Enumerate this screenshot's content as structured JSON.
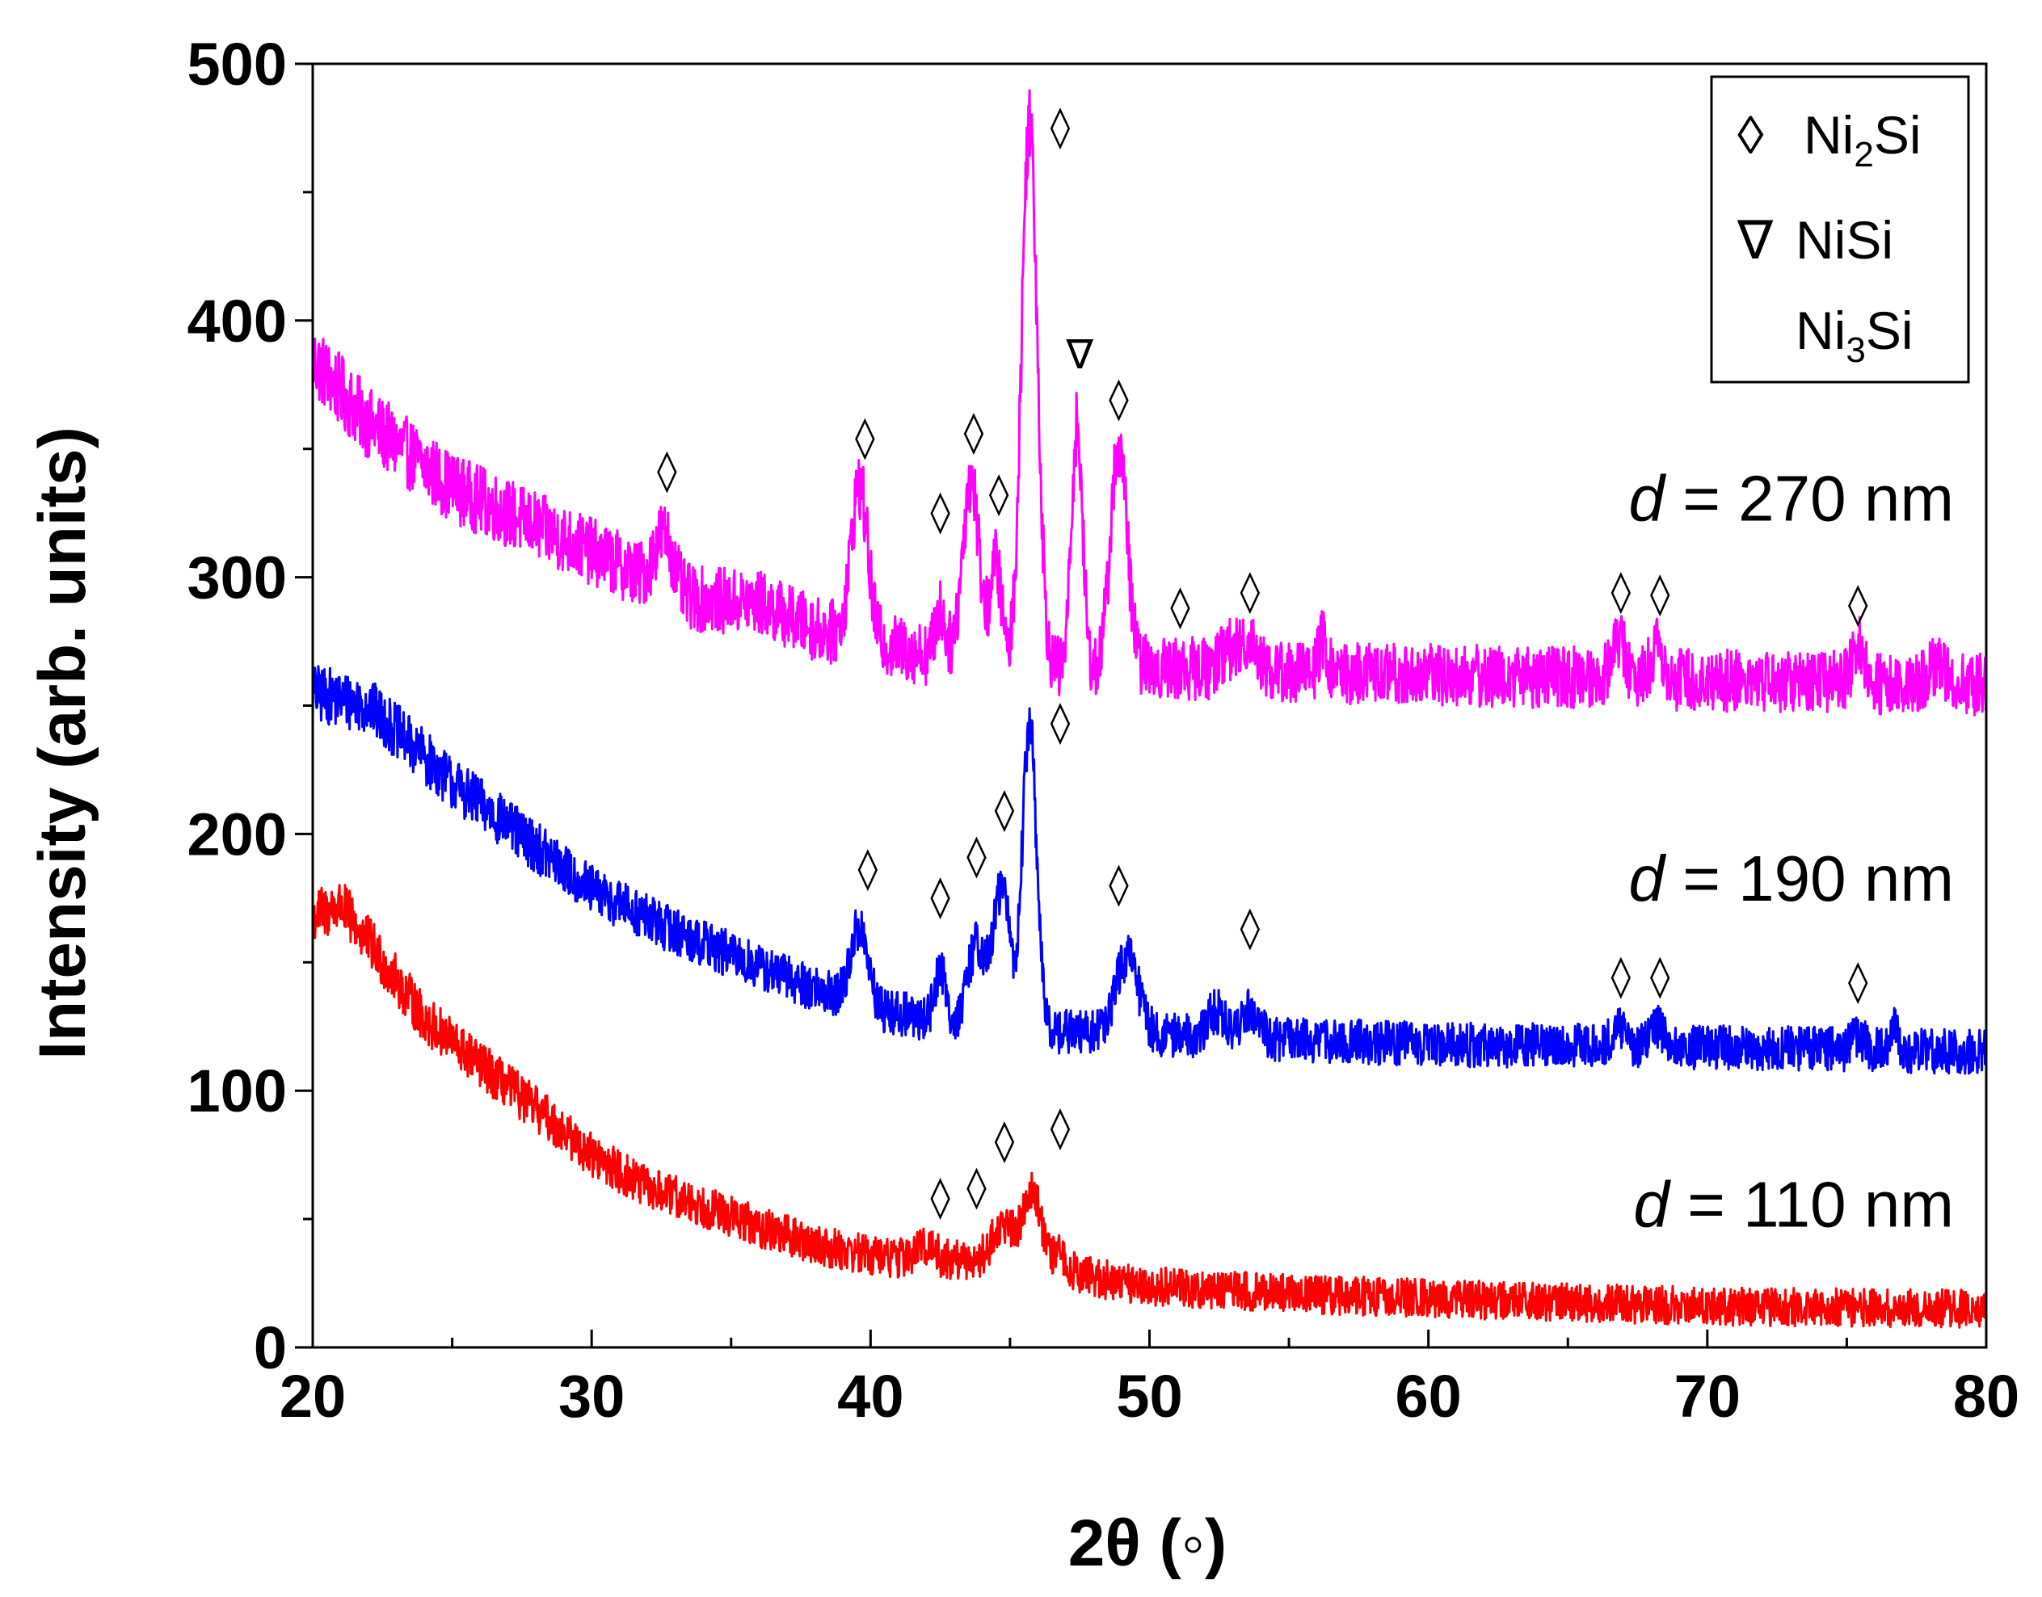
{
  "chart_data": {
    "type": "line",
    "xlabel": "2θ (◦)",
    "ylabel": "Intensity (arb. units)",
    "xlim": [
      20,
      80
    ],
    "ylim": [
      0,
      500
    ],
    "xticks": [
      20,
      30,
      40,
      50,
      60,
      70,
      80
    ],
    "yticks": [
      0,
      100,
      200,
      300,
      400,
      500
    ],
    "legend": {
      "placement": "top-right",
      "entries": [
        {
          "symbol": "◊",
          "label": "Ni",
          "sub": "2",
          "suffix": "Si"
        },
        {
          "symbol": "∇",
          "label": "Ni",
          "sub": "",
          "suffix": "Si"
        },
        {
          "symbol": "",
          "label": "Ni",
          "sub": "3",
          "suffix": "Si"
        }
      ]
    },
    "series": [
      {
        "name": "d = 270 nm",
        "label_italic": "d",
        "label_rest": " = 270 nm",
        "color": "#ff00ff",
        "label_y": 322,
        "baseline": {
          "x": [
            20,
            22,
            25,
            28,
            31,
            33,
            36,
            38,
            40,
            42,
            44,
            45,
            47,
            49,
            50,
            55,
            60,
            70,
            80
          ],
          "y": [
            385,
            360,
            335,
            320,
            305,
            292,
            290,
            280,
            275,
            270,
            266,
            265,
            264,
            263,
            265,
            263,
            262,
            260,
            258
          ]
        },
        "noise": 13,
        "peaks": [
          [
            32.6,
            22,
            0.35
          ],
          [
            39.6,
            60,
            0.3
          ],
          [
            42.5,
            18,
            0.18
          ],
          [
            43.6,
            72,
            0.3
          ],
          [
            44.5,
            40,
            0.2
          ],
          [
            45.7,
            215,
            0.28
          ],
          [
            47.4,
            95,
            0.2
          ],
          [
            48.9,
            88,
            0.3
          ],
          [
            52.8,
            8,
            0.3
          ],
          [
            53.6,
            12,
            0.3
          ],
          [
            56.2,
            12,
            0.15
          ],
          [
            66.8,
            15,
            0.25
          ],
          [
            68.2,
            15,
            0.2
          ],
          [
            75.4,
            14,
            0.2
          ],
          [
            78.2,
            8,
            0.3
          ]
        ]
      },
      {
        "name": "d = 190 nm",
        "label_italic": "d",
        "label_rest": " = 190 nm",
        "color": "#0000ff",
        "label_y": 174,
        "baseline": {
          "x": [
            20,
            22,
            25,
            28,
            30,
            33,
            36,
            38,
            40,
            42,
            44,
            45,
            47,
            49,
            50,
            55,
            60,
            70,
            80
          ],
          "y": [
            255,
            250,
            220,
            195,
            178,
            162,
            148,
            140,
            132,
            128,
            125,
            124,
            123,
            122,
            122,
            120,
            118,
            117,
            115
          ]
        },
        "noise": 12,
        "peaks": [
          [
            39.6,
            30,
            0.3
          ],
          [
            42.5,
            20,
            0.2
          ],
          [
            43.8,
            32,
            0.3
          ],
          [
            44.7,
            55,
            0.3
          ],
          [
            45.7,
            120,
            0.25
          ],
          [
            49.2,
            30,
            0.4
          ],
          [
            52.4,
            10,
            0.3
          ],
          [
            53.6,
            12,
            0.3
          ],
          [
            66.8,
            6,
            0.3
          ],
          [
            68.2,
            8,
            0.25
          ],
          [
            75.4,
            6,
            0.2
          ],
          [
            76.7,
            8,
            0.15
          ]
        ]
      },
      {
        "name": "d = 110 nm",
        "label_italic": "d",
        "label_rest": " = 110 nm",
        "color": "#ff0000",
        "label_y": 47,
        "baseline": {
          "x": [
            20,
            21,
            22,
            24,
            26,
            28,
            30,
            32,
            34,
            36,
            38,
            40,
            42,
            44,
            46,
            48,
            50,
            55,
            60,
            70,
            80
          ],
          "y": [
            168,
            172,
            158,
            128,
            110,
            93,
            75,
            62,
            55,
            47,
            40,
            36,
            34,
            34,
            34,
            27,
            24,
            21,
            19,
            16,
            15
          ]
        },
        "noise": 13,
        "peaks": [
          [
            42.0,
            6,
            0.3
          ],
          [
            44.8,
            14,
            0.4
          ],
          [
            45.8,
            28,
            0.3
          ],
          [
            46.8,
            5,
            0.2
          ]
        ]
      }
    ],
    "annotations": [
      {
        "symbol": "◊",
        "x": 32.7,
        "y": 342
      },
      {
        "symbol": "◊",
        "x": 39.8,
        "y": 355
      },
      {
        "symbol": "◊",
        "x": 42.5,
        "y": 326
      },
      {
        "symbol": "◊",
        "x": 43.7,
        "y": 357
      },
      {
        "symbol": "◊",
        "x": 44.6,
        "y": 333
      },
      {
        "symbol": "◊",
        "x": 46.8,
        "y": 476
      },
      {
        "symbol": "∇",
        "x": 47.5,
        "y": 387
      },
      {
        "symbol": "◊",
        "x": 48.9,
        "y": 370
      },
      {
        "symbol": "◊",
        "x": 51.1,
        "y": 289
      },
      {
        "symbol": "◊",
        "x": 53.6,
        "y": 295
      },
      {
        "symbol": "◊",
        "x": 66.9,
        "y": 295
      },
      {
        "symbol": "◊",
        "x": 68.3,
        "y": 294
      },
      {
        "symbol": "◊",
        "x": 75.4,
        "y": 290
      },
      {
        "symbol": "◊",
        "x": 46.8,
        "y": 244
      },
      {
        "symbol": "◊",
        "x": 44.8,
        "y": 210
      },
      {
        "symbol": "◊",
        "x": 43.8,
        "y": 192
      },
      {
        "symbol": "◊",
        "x": 39.9,
        "y": 187
      },
      {
        "symbol": "◊",
        "x": 42.5,
        "y": 176
      },
      {
        "symbol": "◊",
        "x": 48.9,
        "y": 181
      },
      {
        "symbol": "◊",
        "x": 53.6,
        "y": 164
      },
      {
        "symbol": "◊",
        "x": 66.9,
        "y": 145
      },
      {
        "symbol": "◊",
        "x": 68.3,
        "y": 145
      },
      {
        "symbol": "◊",
        "x": 75.4,
        "y": 143
      },
      {
        "symbol": "◊",
        "x": 46.8,
        "y": 86
      },
      {
        "symbol": "◊",
        "x": 44.8,
        "y": 81
      },
      {
        "symbol": "◊",
        "x": 43.8,
        "y": 63
      },
      {
        "symbol": "◊",
        "x": 42.5,
        "y": 59
      }
    ]
  }
}
